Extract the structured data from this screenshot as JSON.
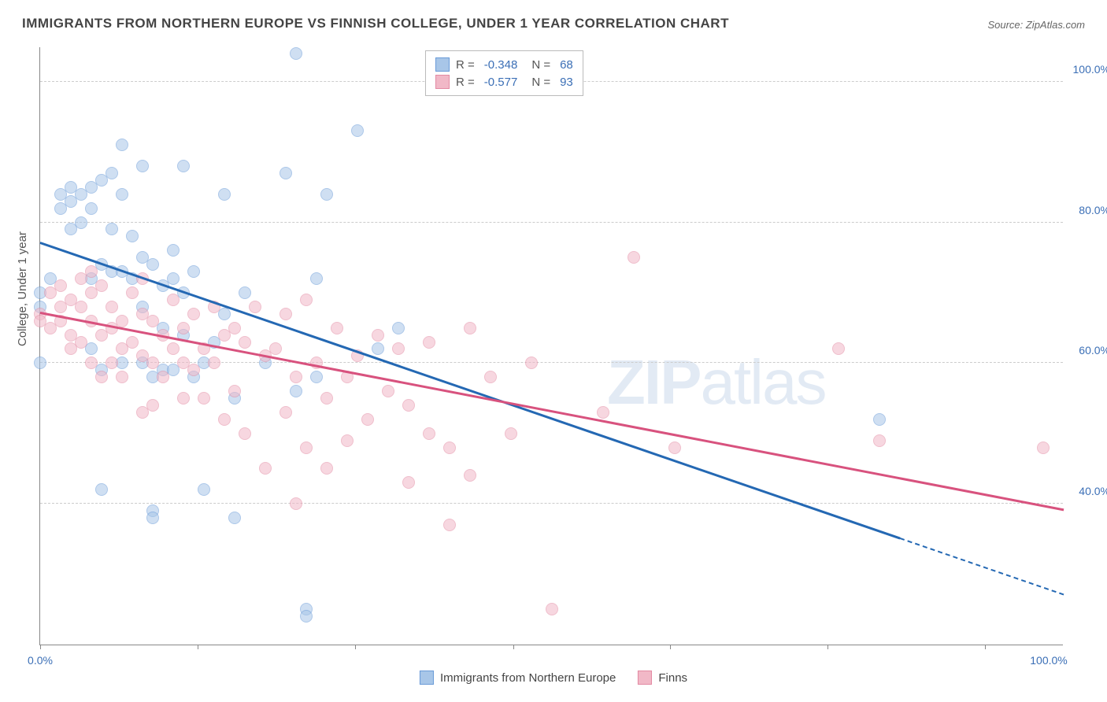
{
  "title": "IMMIGRANTS FROM NORTHERN EUROPE VS FINNISH COLLEGE, UNDER 1 YEAR CORRELATION CHART",
  "source": "Source: ZipAtlas.com",
  "watermark": "ZIPatlas",
  "y_axis_label": "College, Under 1 year",
  "chart": {
    "type": "scatter",
    "xlim": [
      0,
      100
    ],
    "ylim": [
      20,
      105
    ],
    "y_ticks": [
      40,
      60,
      80,
      100
    ],
    "y_tick_labels": [
      "40.0%",
      "60.0%",
      "80.0%",
      "100.0%"
    ],
    "x_ticks": [
      0,
      15.4,
      30.8,
      46.2,
      61.5,
      76.9,
      92.3
    ],
    "x_edge_labels": [
      "0.0%",
      "100.0%"
    ],
    "background_color": "#ffffff",
    "grid_color": "#cccccc",
    "axis_color": "#888888",
    "tick_label_color": "#3b6fb6",
    "series": [
      {
        "name": "Immigrants from Northern Europe",
        "fill_color": "#a8c6e8",
        "stroke_color": "#6a9bd8",
        "fill_opacity": 0.55,
        "marker_radius": 8,
        "trend_color": "#2468b3",
        "trend": {
          "x1": 0,
          "y1": 77,
          "x2": 84,
          "y2": 35,
          "dash_x2": 100,
          "dash_y2": 27
        },
        "R": "-0.348",
        "N": "68",
        "points": [
          [
            0,
            70
          ],
          [
            0,
            68
          ],
          [
            0,
            60
          ],
          [
            1,
            72
          ],
          [
            2,
            84
          ],
          [
            2,
            82
          ],
          [
            3,
            85
          ],
          [
            3,
            83
          ],
          [
            3,
            79
          ],
          [
            4,
            84
          ],
          [
            4,
            80
          ],
          [
            5,
            85
          ],
          [
            5,
            82
          ],
          [
            5,
            72
          ],
          [
            5,
            62
          ],
          [
            6,
            86
          ],
          [
            6,
            74
          ],
          [
            6,
            59
          ],
          [
            6,
            42
          ],
          [
            7,
            87
          ],
          [
            7,
            79
          ],
          [
            7,
            73
          ],
          [
            8,
            91
          ],
          [
            8,
            84
          ],
          [
            8,
            73
          ],
          [
            8,
            60
          ],
          [
            9,
            78
          ],
          [
            9,
            72
          ],
          [
            10,
            88
          ],
          [
            10,
            75
          ],
          [
            10,
            68
          ],
          [
            10,
            60
          ],
          [
            11,
            74
          ],
          [
            11,
            58
          ],
          [
            11,
            39
          ],
          [
            11,
            38
          ],
          [
            12,
            71
          ],
          [
            12,
            65
          ],
          [
            12,
            59
          ],
          [
            13,
            76
          ],
          [
            13,
            72
          ],
          [
            13,
            59
          ],
          [
            14,
            88
          ],
          [
            14,
            70
          ],
          [
            14,
            64
          ],
          [
            15,
            73
          ],
          [
            15,
            58
          ],
          [
            16,
            60
          ],
          [
            16,
            42
          ],
          [
            17,
            63
          ],
          [
            18,
            84
          ],
          [
            18,
            67
          ],
          [
            19,
            55
          ],
          [
            19,
            38
          ],
          [
            20,
            70
          ],
          [
            22,
            60
          ],
          [
            24,
            87
          ],
          [
            25,
            104
          ],
          [
            25,
            56
          ],
          [
            26,
            25
          ],
          [
            26,
            24
          ],
          [
            27,
            72
          ],
          [
            27,
            58
          ],
          [
            28,
            84
          ],
          [
            31,
            93
          ],
          [
            33,
            62
          ],
          [
            35,
            65
          ],
          [
            82,
            52
          ]
        ]
      },
      {
        "name": "Finns",
        "fill_color": "#f1b8c7",
        "stroke_color": "#e38aa3",
        "fill_opacity": 0.55,
        "marker_radius": 8,
        "trend_color": "#d8527e",
        "trend": {
          "x1": 0,
          "y1": 67,
          "x2": 100,
          "y2": 39
        },
        "R": "-0.577",
        "N": "93",
        "points": [
          [
            0,
            67
          ],
          [
            0,
            66
          ],
          [
            1,
            70
          ],
          [
            1,
            65
          ],
          [
            2,
            71
          ],
          [
            2,
            68
          ],
          [
            2,
            66
          ],
          [
            3,
            69
          ],
          [
            3,
            64
          ],
          [
            3,
            62
          ],
          [
            4,
            72
          ],
          [
            4,
            68
          ],
          [
            4,
            63
          ],
          [
            5,
            73
          ],
          [
            5,
            70
          ],
          [
            5,
            66
          ],
          [
            5,
            60
          ],
          [
            6,
            71
          ],
          [
            6,
            64
          ],
          [
            6,
            58
          ],
          [
            7,
            68
          ],
          [
            7,
            65
          ],
          [
            7,
            60
          ],
          [
            8,
            66
          ],
          [
            8,
            62
          ],
          [
            8,
            58
          ],
          [
            9,
            70
          ],
          [
            9,
            63
          ],
          [
            10,
            72
          ],
          [
            10,
            67
          ],
          [
            10,
            61
          ],
          [
            10,
            53
          ],
          [
            11,
            66
          ],
          [
            11,
            60
          ],
          [
            11,
            54
          ],
          [
            12,
            64
          ],
          [
            12,
            58
          ],
          [
            13,
            69
          ],
          [
            13,
            62
          ],
          [
            14,
            65
          ],
          [
            14,
            60
          ],
          [
            14,
            55
          ],
          [
            15,
            67
          ],
          [
            15,
            59
          ],
          [
            16,
            62
          ],
          [
            16,
            55
          ],
          [
            17,
            68
          ],
          [
            17,
            60
          ],
          [
            18,
            64
          ],
          [
            18,
            52
          ],
          [
            19,
            65
          ],
          [
            19,
            56
          ],
          [
            20,
            63
          ],
          [
            20,
            50
          ],
          [
            21,
            68
          ],
          [
            22,
            61
          ],
          [
            22,
            45
          ],
          [
            23,
            62
          ],
          [
            24,
            67
          ],
          [
            24,
            53
          ],
          [
            25,
            58
          ],
          [
            25,
            40
          ],
          [
            26,
            69
          ],
          [
            26,
            48
          ],
          [
            27,
            60
          ],
          [
            28,
            55
          ],
          [
            28,
            45
          ],
          [
            29,
            65
          ],
          [
            30,
            58
          ],
          [
            30,
            49
          ],
          [
            31,
            61
          ],
          [
            32,
            52
          ],
          [
            33,
            64
          ],
          [
            34,
            56
          ],
          [
            35,
            62
          ],
          [
            36,
            54
          ],
          [
            36,
            43
          ],
          [
            38,
            63
          ],
          [
            38,
            50
          ],
          [
            40,
            48
          ],
          [
            40,
            37
          ],
          [
            42,
            65
          ],
          [
            42,
            44
          ],
          [
            44,
            58
          ],
          [
            46,
            50
          ],
          [
            48,
            60
          ],
          [
            50,
            25
          ],
          [
            55,
            53
          ],
          [
            58,
            75
          ],
          [
            62,
            48
          ],
          [
            78,
            62
          ],
          [
            82,
            49
          ],
          [
            98,
            48
          ]
        ]
      }
    ]
  }
}
